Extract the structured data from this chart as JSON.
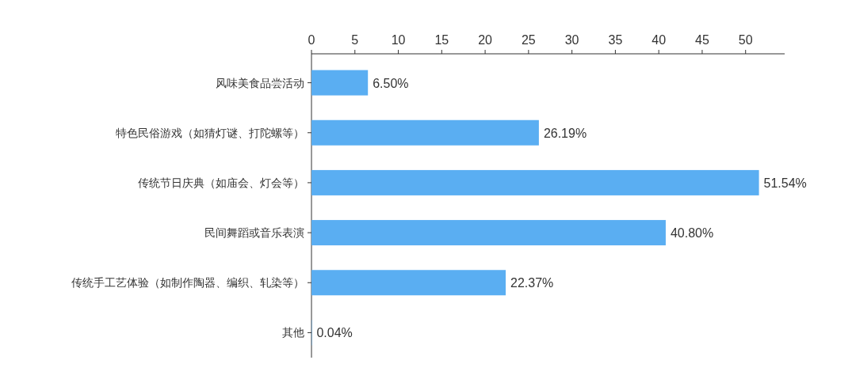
{
  "chart_data": {
    "type": "bar",
    "orientation": "horizontal",
    "categories": [
      "风味美食品尝活动",
      "特色民俗游戏（如猜灯谜、打陀螺等）",
      "传统节日庆典（如庙会、灯会等）",
      "民间舞蹈或音乐表演",
      "传统手工艺体验（如制作陶器、编织、轧染等）",
      "其他"
    ],
    "values": [
      6.5,
      26.19,
      51.54,
      40.8,
      22.37,
      0.04
    ],
    "value_labels": [
      "6.50%",
      "26.19%",
      "51.54%",
      "40.80%",
      "22.37%",
      "0.04%"
    ],
    "color": "#5aaef2",
    "xlim": [
      0,
      54.5
    ],
    "xticks": [
      0,
      5,
      10,
      15,
      20,
      25,
      30,
      35,
      40,
      45,
      50
    ]
  }
}
